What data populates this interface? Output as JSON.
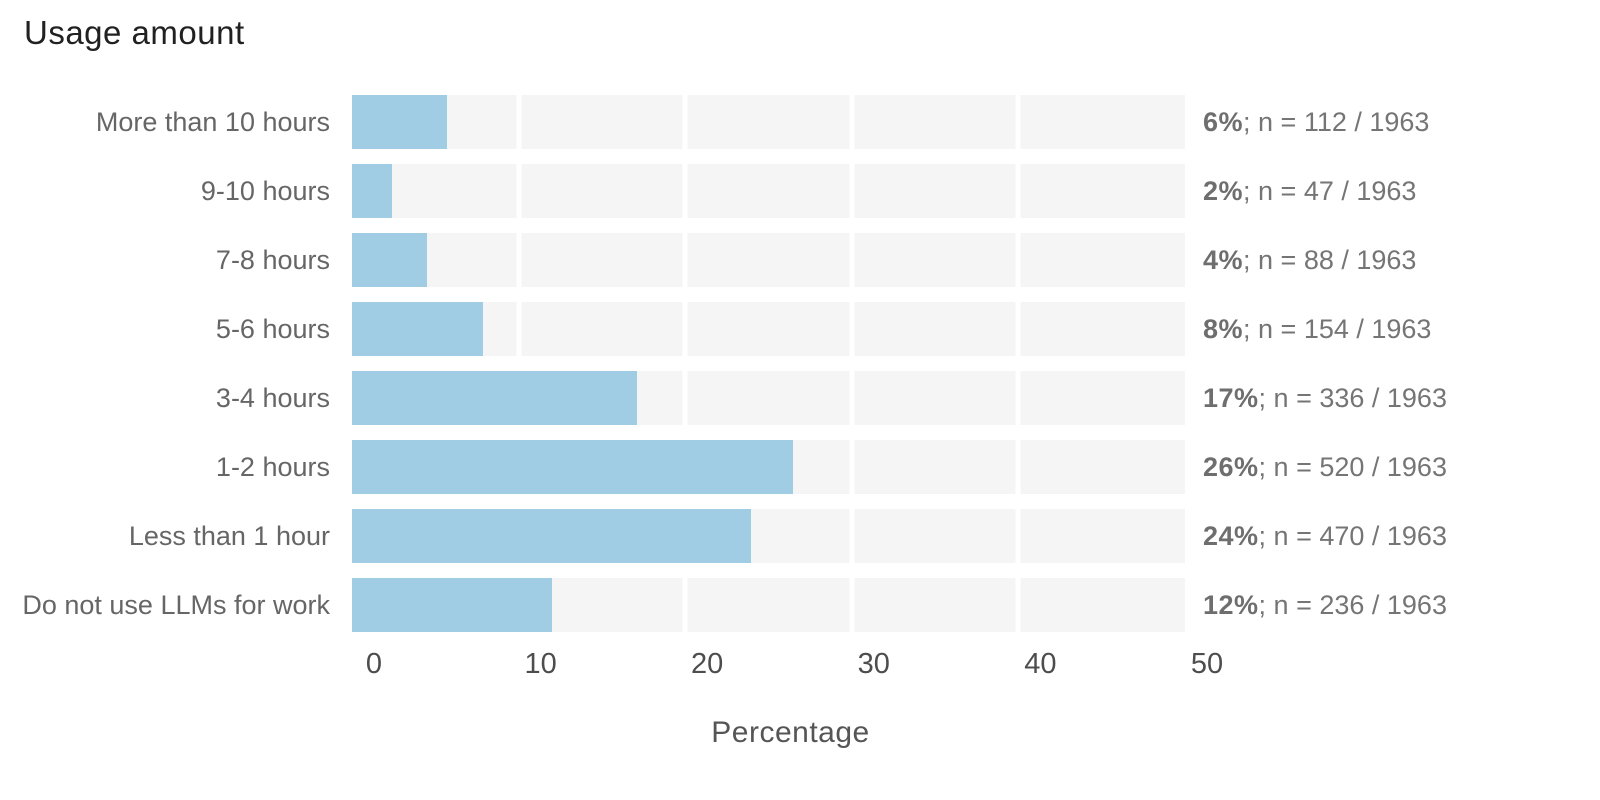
{
  "title": "Usage amount",
  "chart_data": {
    "type": "bar",
    "orientation": "horizontal",
    "title": "Usage amount",
    "xlabel": "Percentage",
    "xlim": [
      0,
      50
    ],
    "xticks": [
      "0",
      "10",
      "20",
      "30",
      "40",
      "50"
    ],
    "grid": true,
    "total_n": 1963,
    "bar_color": "#a0cde3",
    "track_color": "#f5f5f5",
    "categories": [
      "More than 10 hours",
      "9-10 hours",
      "7-8 hours",
      "5-6 hours",
      "3-4 hours",
      "1-2 hours",
      "Less than 1 hour",
      "Do not use LLMs for work"
    ],
    "values_pct": [
      5.7,
      2.4,
      4.5,
      7.8,
      17.1,
      26.5,
      23.9,
      12.0
    ],
    "rows": [
      {
        "label": "More than 10 hours",
        "pct_label": "6%",
        "count": 112,
        "annotation_rest": "; n = 112 / 1963"
      },
      {
        "label": "9-10 hours",
        "pct_label": "2%",
        "count": 47,
        "annotation_rest": "; n = 47 / 1963"
      },
      {
        "label": "7-8 hours",
        "pct_label": "4%",
        "count": 88,
        "annotation_rest": "; n = 88 / 1963"
      },
      {
        "label": "5-6 hours",
        "pct_label": "8%",
        "count": 154,
        "annotation_rest": "; n = 154 / 1963"
      },
      {
        "label": "3-4 hours",
        "pct_label": "17%",
        "count": 336,
        "annotation_rest": "; n = 336 / 1963"
      },
      {
        "label": "1-2 hours",
        "pct_label": "26%",
        "count": 520,
        "annotation_rest": "; n = 520 / 1963"
      },
      {
        "label": "Less than 1 hour",
        "pct_label": "24%",
        "count": 470,
        "annotation_rest": "; n = 470 / 1963"
      },
      {
        "label": "Do not use LLMs for work",
        "pct_label": "12%",
        "count": 236,
        "annotation_rest": "; n = 236 / 1963"
      }
    ]
  }
}
